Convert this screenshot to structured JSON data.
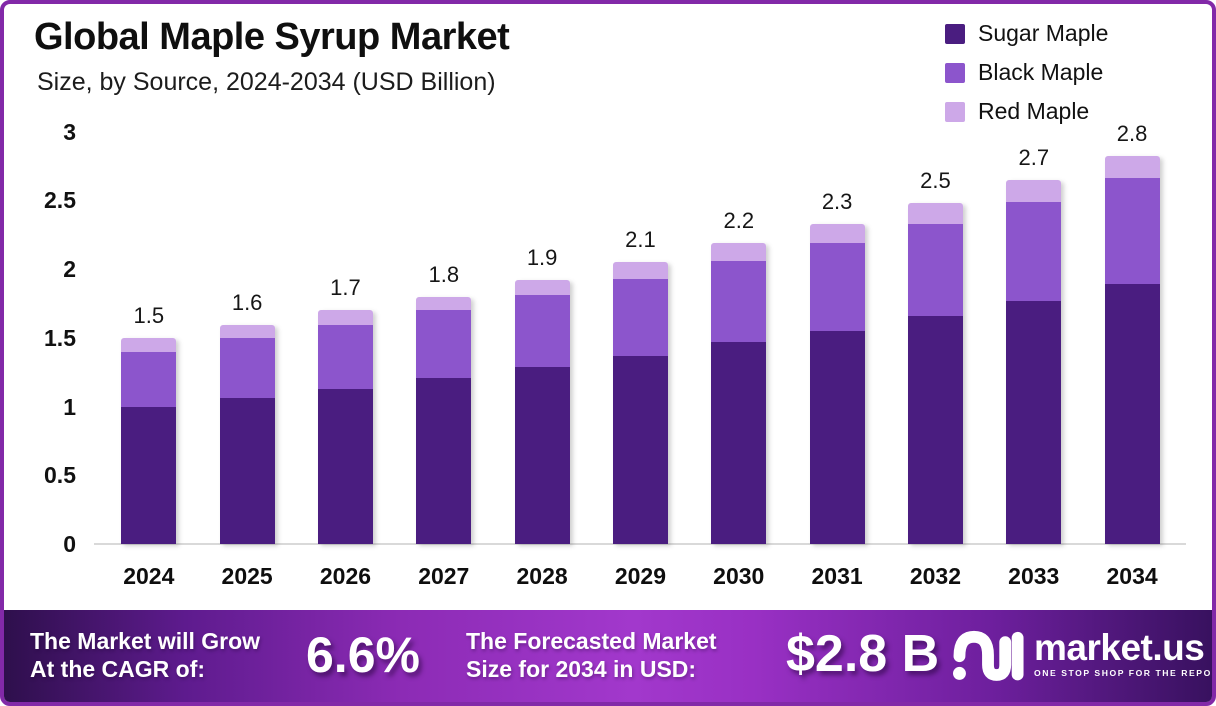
{
  "header": {
    "title": "Global Maple Syrup Market",
    "subtitle": "Size, by Source, 2024-2034 (USD Billion)"
  },
  "colors": {
    "sugar_maple": "#4a1d80",
    "black_maple": "#8c55cc",
    "red_maple": "#cda8e8",
    "card_border": "#8229a8",
    "axis_line": "#d9d9d9",
    "footer_gradient_left": "#2e0f4c",
    "footer_gradient_mid": "#a238cc",
    "footer_gradient_right": "#38115f"
  },
  "chart_data": {
    "type": "bar",
    "stacked": true,
    "title": "Global Maple Syrup Market Size, by Source, 2024-2034 (USD Billion)",
    "categories": [
      "2024",
      "2025",
      "2026",
      "2027",
      "2028",
      "2029",
      "2030",
      "2031",
      "2032",
      "2033",
      "2034"
    ],
    "series": [
      {
        "name": "Sugar Maple",
        "color": "#4a1d80",
        "values": [
          1.0,
          1.06,
          1.13,
          1.21,
          1.29,
          1.37,
          1.47,
          1.55,
          1.66,
          1.77,
          1.89
        ]
      },
      {
        "name": "Black Maple",
        "color": "#8c55cc",
        "values": [
          0.4,
          0.44,
          0.46,
          0.49,
          0.52,
          0.56,
          0.59,
          0.64,
          0.67,
          0.72,
          0.77
        ]
      },
      {
        "name": "Red Maple",
        "color": "#cda8e8",
        "values": [
          0.1,
          0.09,
          0.11,
          0.1,
          0.11,
          0.12,
          0.13,
          0.14,
          0.15,
          0.16,
          0.16
        ]
      }
    ],
    "total_labels": [
      "1.5",
      "1.6",
      "1.7",
      "1.8",
      "1.9",
      "2.1",
      "2.2",
      "2.3",
      "2.5",
      "2.7",
      "2.8"
    ],
    "y_ticks": [
      {
        "label": "3",
        "value": 3.0
      },
      {
        "label": "2.5",
        "value": 2.5
      },
      {
        "label": "2",
        "value": 2.0
      },
      {
        "label": "1.5",
        "value": 1.5
      },
      {
        "label": "1",
        "value": 1.0
      },
      {
        "label": "0.5",
        "value": 0.5
      },
      {
        "label": "0",
        "value": 0.0
      }
    ],
    "ylim": [
      0,
      3
    ],
    "grid": false,
    "legend_position": "top-right"
  },
  "footer": {
    "cagr_label_line1": "The Market will Grow",
    "cagr_label_line2": "At the CAGR of:",
    "cagr_value": "6.6%",
    "forecast_label_line1": "The Forecasted Market",
    "forecast_label_line2": "Size for 2034 in USD:",
    "forecast_value": "$2.8 B",
    "brand": {
      "name": "market.us",
      "tagline": "ONE STOP SHOP FOR THE REPORTS"
    }
  }
}
